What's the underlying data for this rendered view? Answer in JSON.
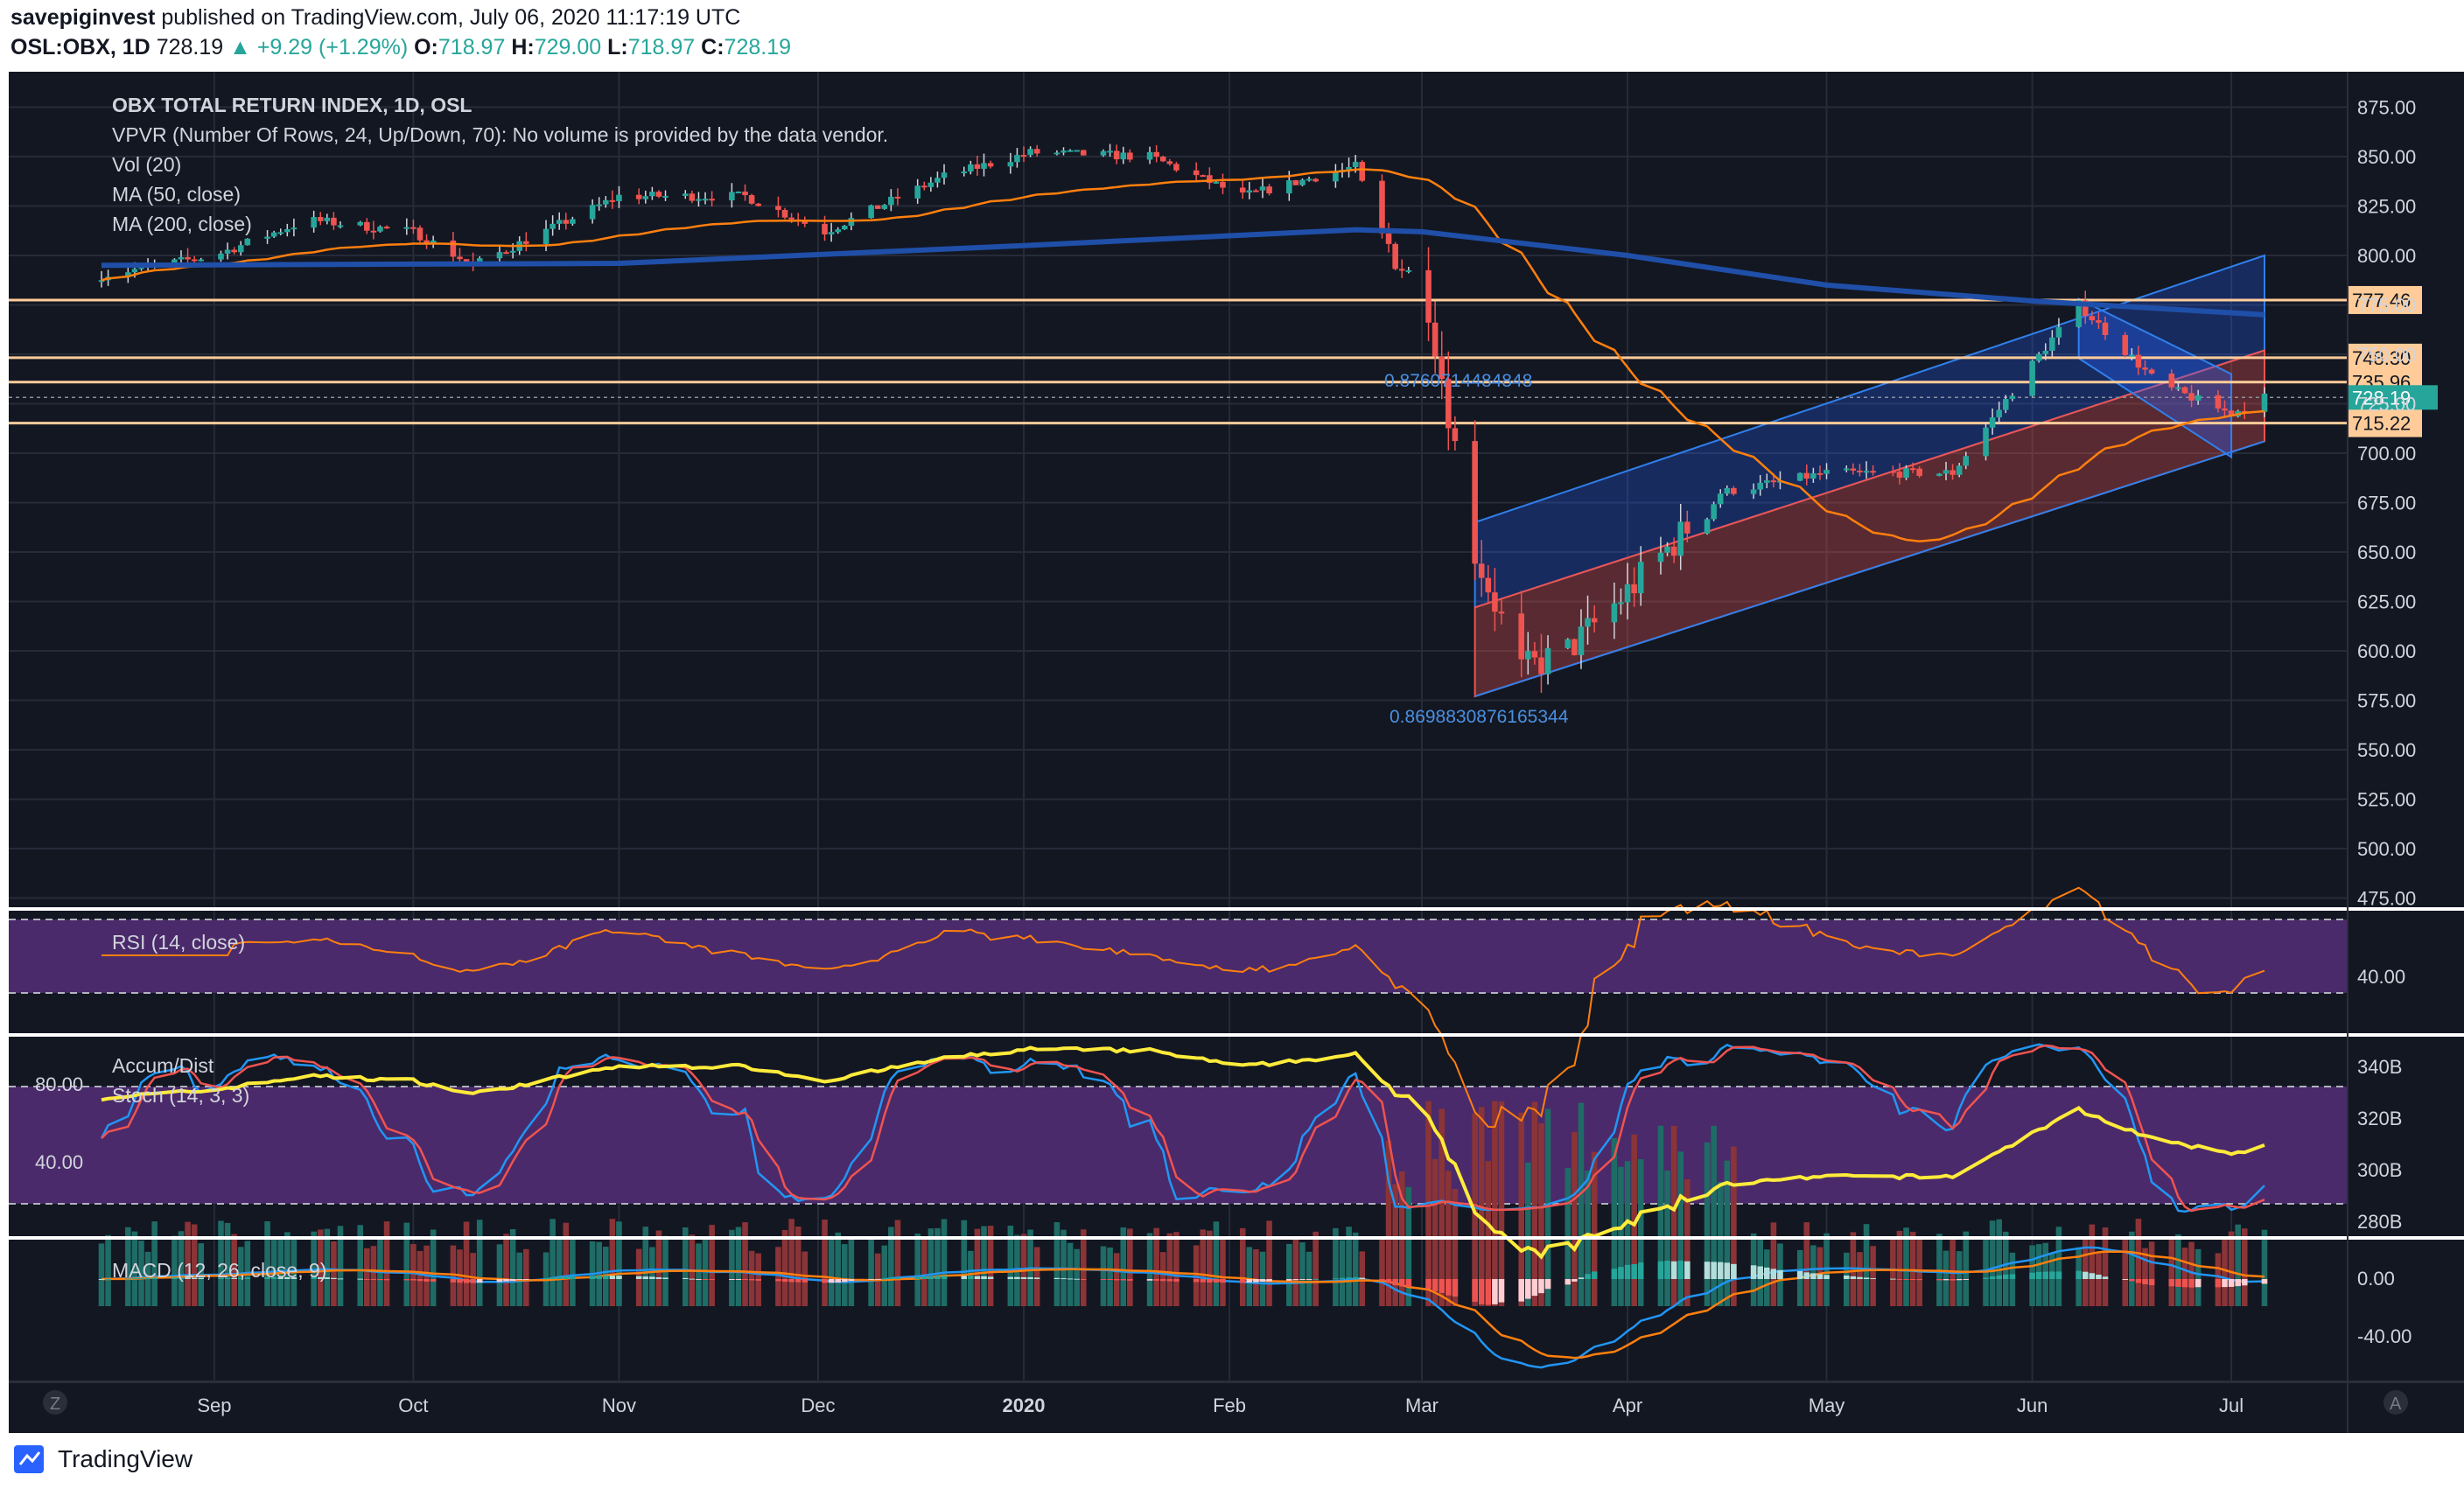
{
  "header": {
    "publisher": "savepiginvest",
    "published_text": "published on TradingView.com, July 06, 2020 11:17:19 UTC",
    "symbol_line": "OSL:OBX, 1D",
    "last": "728.19",
    "change": "▲ +9.29 (+1.29%)",
    "o_label": "O:",
    "o_value": "718.97",
    "h_label": "H:",
    "h_value": "729.00",
    "l_label": "L:",
    "l_value": "718.97",
    "c_label": "C:",
    "c_value": "728.19"
  },
  "legend": {
    "title": "OBX TOTAL RETURN INDEX, 1D, OSL",
    "vpvr": "VPVR (Number Of Rows, 24, Up/Down, 70): No volume is provided by the data vendor.",
    "vol": "Vol (20)",
    "ma50": "MA (50, close)",
    "ma200": "MA (200, close)"
  },
  "panes": {
    "rsi_label": "RSI (14, close)",
    "rsi_tick": "40.00",
    "accum_label": "Accum/Dist",
    "stoch_label": "Stoch (14, 3, 3)",
    "stoch_ticks": [
      "80.00",
      "40.00"
    ],
    "accum_ticks": [
      "340B",
      "320B",
      "300B",
      "280B"
    ],
    "macd_label": "MACD (12, 26, close, 9)",
    "macd_ticks": [
      "0.00",
      "-40.00"
    ]
  },
  "price_levels": [
    {
      "label": "777.46",
      "value": 777.46
    },
    {
      "label": "748.30",
      "value": 748.3
    },
    {
      "label": "735.96",
      "value": 735.96
    },
    {
      "label": "715.22",
      "value": 715.22
    }
  ],
  "current_price_label": "728.19",
  "fib_labels": {
    "top": "0.8760714484848",
    "bottom": "0.8698830876165344"
  },
  "x_axis": [
    "Sep",
    "Oct",
    "Nov",
    "Dec",
    "2020",
    "Feb",
    "Mar",
    "Apr",
    "May",
    "Jun",
    "Jul"
  ],
  "corner_buttons": {
    "left": "Z",
    "right": "A"
  },
  "footer": {
    "brand": "TradingView"
  },
  "colors": {
    "background": "#131722",
    "up": "#26a69a",
    "down": "#ef5350",
    "ma50": "#ff7f0e",
    "ma200": "#1f4fa8",
    "level": "#ffcc99",
    "channel_blue": "#2962ff",
    "indicator_band": "#4a2a6a"
  },
  "chart_data": {
    "type": "candlestick",
    "y_axis": {
      "ticks": [
        875,
        850,
        825,
        800,
        775,
        750,
        725,
        700,
        675,
        650,
        625,
        600,
        575,
        550,
        525,
        500,
        475
      ],
      "unit": "index points"
    },
    "anchors_date_close": [
      [
        "2019-08-15",
        790
      ],
      [
        "2019-09-01",
        800
      ],
      [
        "2019-09-15",
        818
      ],
      [
        "2019-10-01",
        812
      ],
      [
        "2019-10-10",
        795
      ],
      [
        "2019-11-01",
        830
      ],
      [
        "2019-11-20",
        830
      ],
      [
        "2019-12-02",
        812
      ],
      [
        "2019-12-20",
        840
      ],
      [
        "2020-01-02",
        852
      ],
      [
        "2020-01-20",
        850
      ],
      [
        "2020-02-03",
        830
      ],
      [
        "2020-02-20",
        845
      ],
      [
        "2020-02-24",
        810
      ],
      [
        "2020-03-02",
        775
      ],
      [
        "2020-03-09",
        650
      ],
      [
        "2020-03-16",
        590
      ],
      [
        "2020-03-23",
        600
      ],
      [
        "2020-04-01",
        630
      ],
      [
        "2020-04-15",
        680
      ],
      [
        "2020-05-01",
        690
      ],
      [
        "2020-05-20",
        690
      ],
      [
        "2020-06-01",
        745
      ],
      [
        "2020-06-08",
        775
      ],
      [
        "2020-06-20",
        735
      ],
      [
        "2020-07-01",
        720
      ],
      [
        "2020-07-06",
        728.19
      ]
    ],
    "ma200_endpoints": [
      [
        "2019-08-15",
        795
      ],
      [
        "2020-02-20",
        813
      ],
      [
        "2020-07-06",
        770
      ]
    ]
  }
}
